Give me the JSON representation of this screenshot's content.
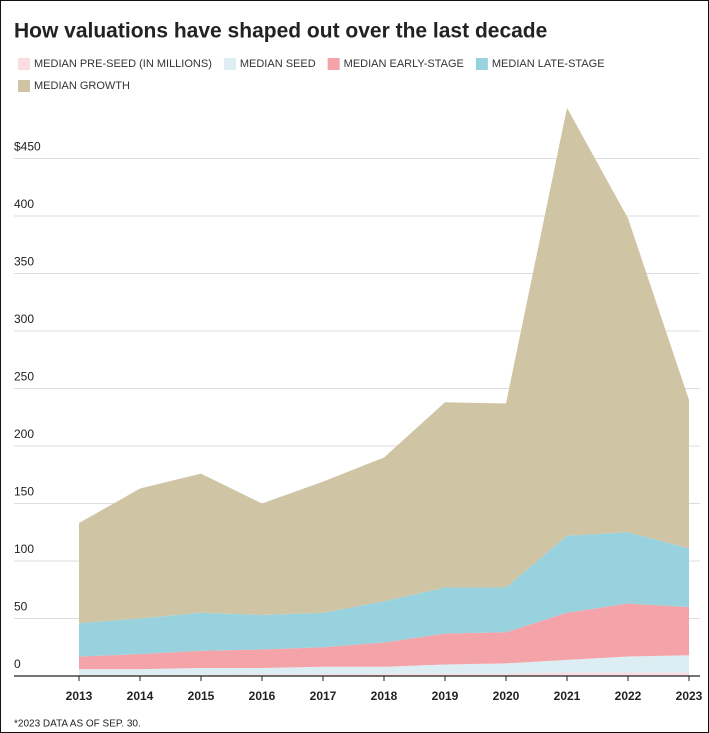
{
  "chart_data": {
    "type": "stacked_area",
    "title": "How valuations have shaped out over the last decade",
    "categories": [
      "2013",
      "2014",
      "2015",
      "2016",
      "2017",
      "2018",
      "2019",
      "2020",
      "2021",
      "2022",
      "2023"
    ],
    "series": [
      {
        "name": "MEDIAN PRE-SEED (IN MILLIONS)",
        "color": "#f9dde0",
        "values": [
          1,
          1,
          1,
          1.5,
          1.5,
          2,
          2,
          2,
          3,
          3,
          3
        ]
      },
      {
        "name": "MEDIAN SEED",
        "color": "#dceef3",
        "values": [
          5,
          5,
          6,
          5.5,
          6.5,
          6,
          8,
          9,
          11,
          14,
          15
        ]
      },
      {
        "name": "MEDIAN EARLY-STAGE",
        "color": "#f4a4a8",
        "values": [
          11,
          13,
          15,
          16,
          17,
          21,
          27,
          27,
          41,
          46,
          42
        ]
      },
      {
        "name": "MEDIAN LATE-STAGE",
        "color": "#98d2de",
        "values": [
          29,
          31,
          33,
          30,
          30,
          36,
          40,
          39,
          67,
          62,
          51
        ]
      },
      {
        "name": "MEDIAN GROWTH",
        "color": "#cfc5a5",
        "values": [
          87,
          113,
          121,
          97,
          114,
          125,
          161,
          160,
          372,
          273,
          129
        ]
      }
    ],
    "ylim": [
      0,
      500
    ],
    "yticks": [
      0,
      50,
      100,
      150,
      200,
      250,
      300,
      350,
      400,
      {
        "value": 450,
        "label": "$450"
      }
    ],
    "grid": true,
    "footnote": "*2023 DATA AS OF SEP. 30."
  }
}
